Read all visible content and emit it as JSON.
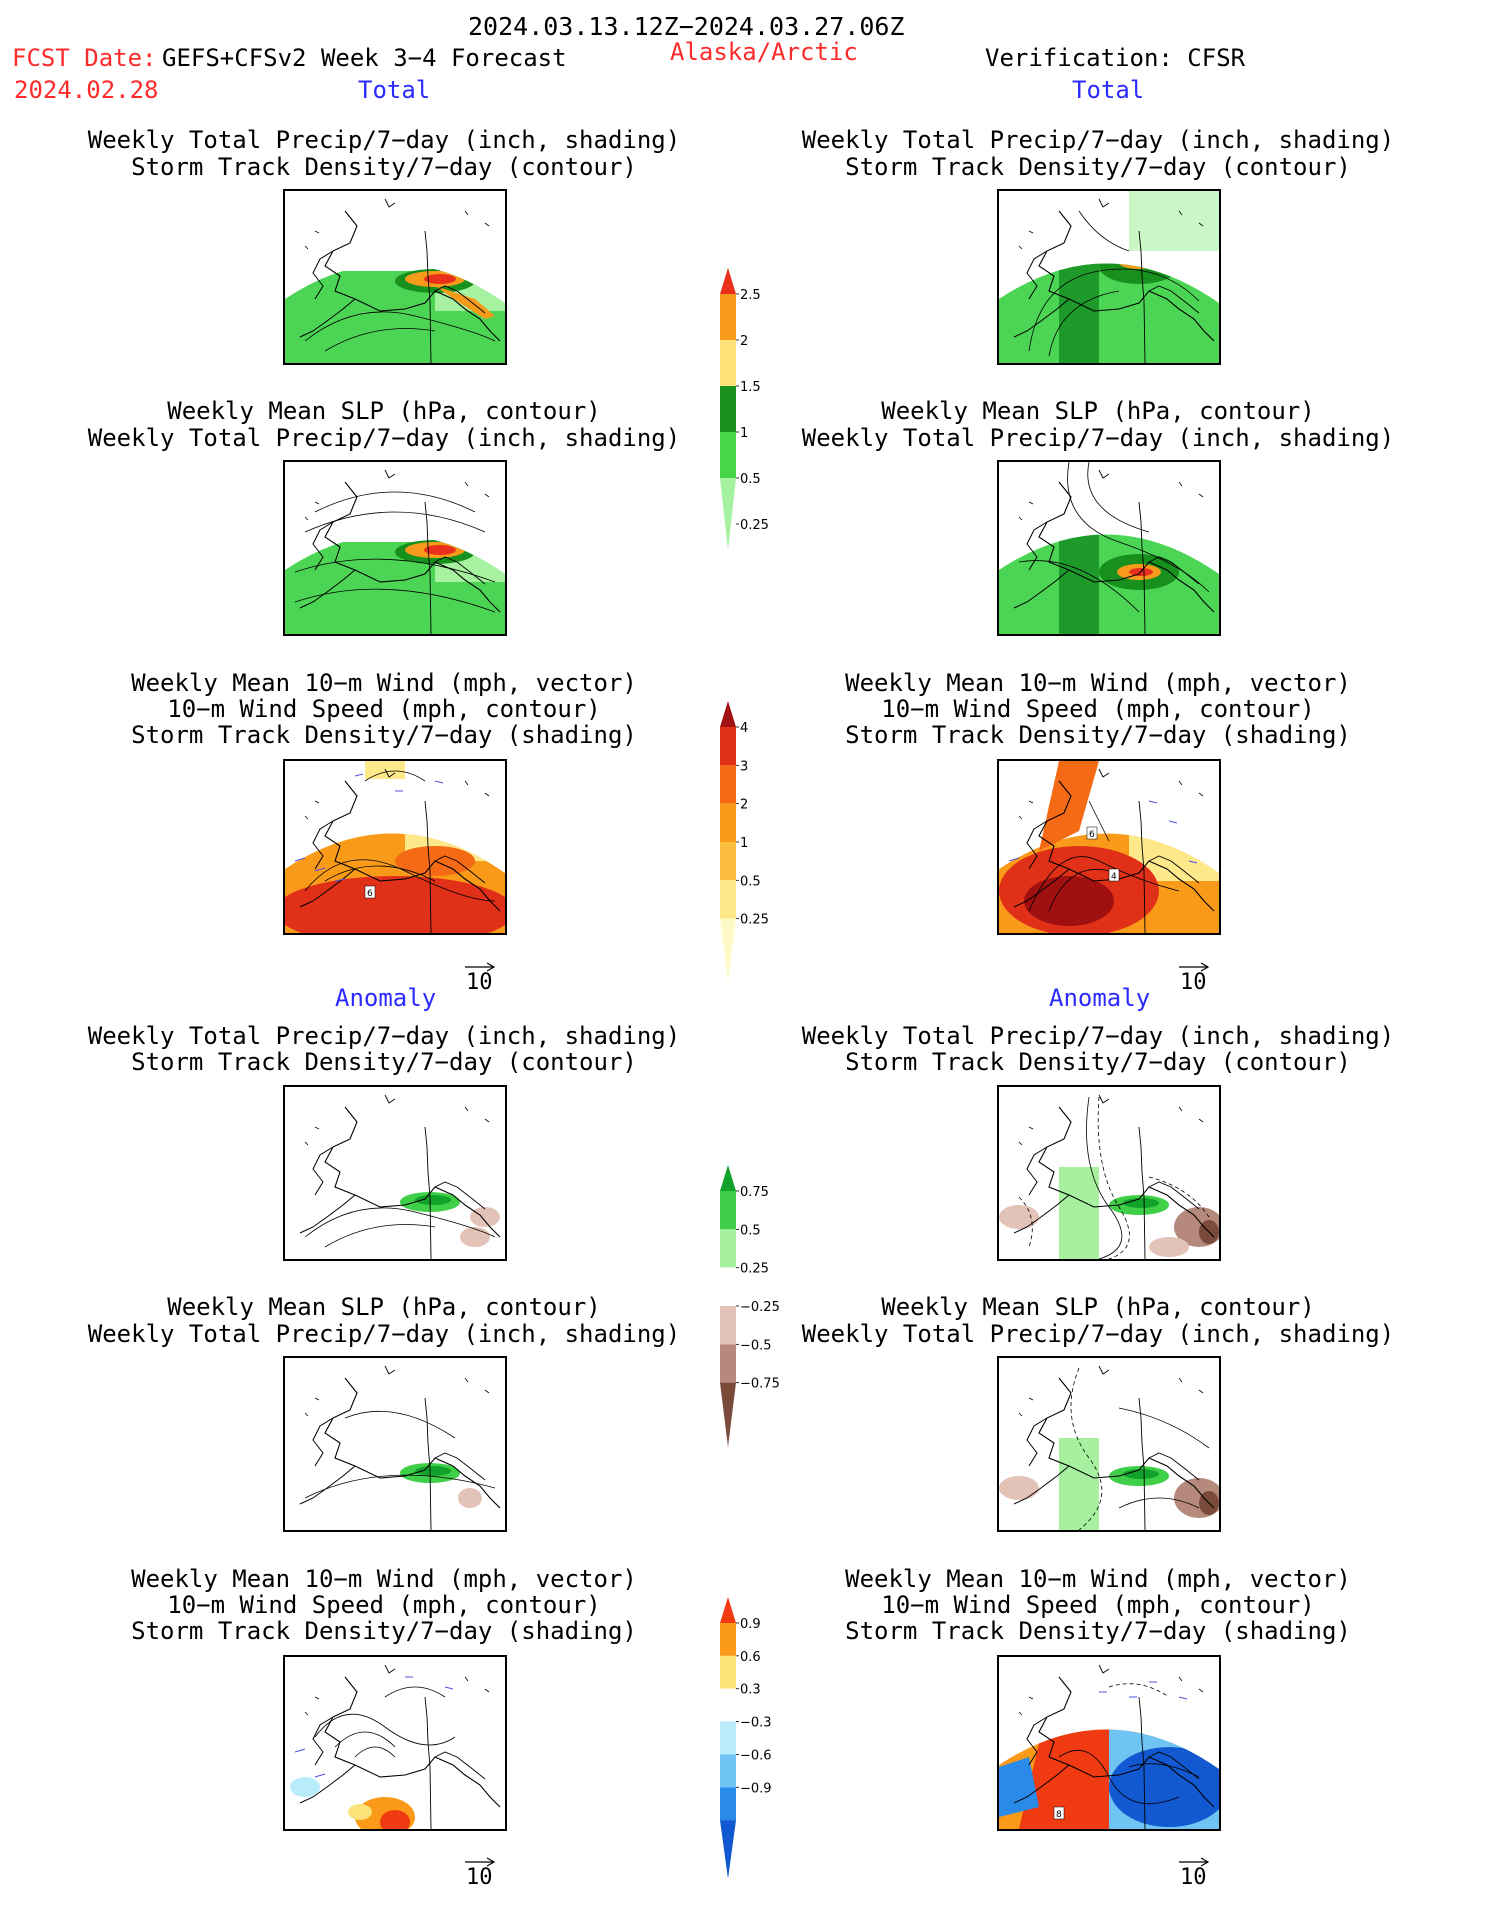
{
  "header": {
    "date_range": "2024.03.13.12Z−2024.03.27.06Z",
    "fcst_label": "FCST Date:",
    "model": "GEFS+CFSv2 Week 3−4 Forecast",
    "region": "Alaska/Arctic",
    "verification": "Verification: CFSR",
    "fcst_date": "2024.02.28"
  },
  "sections": {
    "total": "Total",
    "anomaly": "Anomaly"
  },
  "titles": {
    "precip_track": [
      "Weekly Total Precip/7−day (inch, shading)",
      "Storm Track Density/7−day (contour)"
    ],
    "slp_precip": [
      "Weekly Mean SLP (hPa, contour)",
      "Weekly Total Precip/7−day (inch, shading)"
    ],
    "wind_track": [
      "Weekly Mean 10−m Wind (mph, vector)",
      "10−m Wind Speed (mph, contour)",
      "Storm Track Density/7−day (shading)"
    ]
  },
  "vector_reference": "10",
  "colorbars": {
    "precip_total": {
      "labels": [
        "2.5",
        "2",
        "1.5",
        "1",
        "0.5",
        "0.25"
      ],
      "colors": [
        "#e8301c",
        "#f99b1a",
        "#ffe27a",
        "#17901e",
        "#46d64a",
        "#a6f2a0"
      ]
    },
    "track_total": {
      "labels": [
        "4",
        "3",
        "2",
        "1",
        "0.5",
        "0.25"
      ],
      "colors": [
        "#a01010",
        "#e03018",
        "#f56a14",
        "#f99a18",
        "#fbbe3e",
        "#fde98a",
        "#fefac8"
      ]
    },
    "precip_anom": {
      "labels": [
        "0.75",
        "0.5",
        "0.25",
        "−0.25",
        "−0.5",
        "−0.75"
      ],
      "colors": [
        "#10a22a",
        "#3fcf48",
        "#a6f0a0",
        "#ffffff",
        "#e3c3b8",
        "#b58a7c",
        "#7a4a3a"
      ]
    },
    "track_anom": {
      "labels": [
        "0.9",
        "0.6",
        "0.3",
        "−0.3",
        "−0.6",
        "−0.9"
      ],
      "colors": [
        "#f03a12",
        "#fb9a18",
        "#fde27a",
        "#ffffff",
        "#b8ecfb",
        "#70c4f3",
        "#2a8ae8",
        "#1258d0"
      ]
    }
  },
  "colors": {
    "date_red": "#ff2a2a",
    "section_blue": "#2b2bff",
    "green_shade": "#4cd455",
    "dark_green": "#1d9a2a",
    "orange": "#f5a020",
    "red": "#e02a18",
    "dark_red": "#a81414",
    "brown": "#c9a59a",
    "dark_brown": "#7a4a3a",
    "light_blue": "#a8ddf5",
    "blue": "#2a72dc"
  }
}
